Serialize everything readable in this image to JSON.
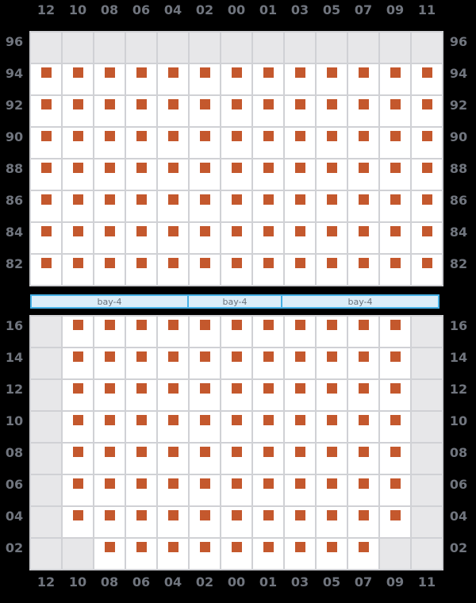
{
  "columns": [
    "12",
    "10",
    "08",
    "06",
    "04",
    "02",
    "00",
    "01",
    "03",
    "05",
    "07",
    "09",
    "11"
  ],
  "top_section": {
    "tiers": [
      {
        "tier": "96",
        "cells": [
          0,
          0,
          0,
          0,
          0,
          0,
          0,
          0,
          0,
          0,
          0,
          0,
          0
        ]
      },
      {
        "tier": "94",
        "cells": [
          1,
          1,
          1,
          1,
          1,
          1,
          1,
          1,
          1,
          1,
          1,
          1,
          1
        ]
      },
      {
        "tier": "92",
        "cells": [
          1,
          1,
          1,
          1,
          1,
          1,
          1,
          1,
          1,
          1,
          1,
          1,
          1
        ]
      },
      {
        "tier": "90",
        "cells": [
          1,
          1,
          1,
          1,
          1,
          1,
          1,
          1,
          1,
          1,
          1,
          1,
          1
        ]
      },
      {
        "tier": "88",
        "cells": [
          1,
          1,
          1,
          1,
          1,
          1,
          1,
          1,
          1,
          1,
          1,
          1,
          1
        ]
      },
      {
        "tier": "86",
        "cells": [
          1,
          1,
          1,
          1,
          1,
          1,
          1,
          1,
          1,
          1,
          1,
          1,
          1
        ]
      },
      {
        "tier": "84",
        "cells": [
          1,
          1,
          1,
          1,
          1,
          1,
          1,
          1,
          1,
          1,
          1,
          1,
          1
        ]
      },
      {
        "tier": "82",
        "cells": [
          1,
          1,
          1,
          1,
          1,
          1,
          1,
          1,
          1,
          1,
          1,
          1,
          1
        ]
      }
    ]
  },
  "bottom_section": {
    "tiers": [
      {
        "tier": "16",
        "cells": [
          0,
          1,
          1,
          1,
          1,
          1,
          1,
          1,
          1,
          1,
          1,
          1,
          0
        ]
      },
      {
        "tier": "14",
        "cells": [
          0,
          1,
          1,
          1,
          1,
          1,
          1,
          1,
          1,
          1,
          1,
          1,
          0
        ]
      },
      {
        "tier": "12",
        "cells": [
          0,
          1,
          1,
          1,
          1,
          1,
          1,
          1,
          1,
          1,
          1,
          1,
          0
        ]
      },
      {
        "tier": "10",
        "cells": [
          0,
          1,
          1,
          1,
          1,
          1,
          1,
          1,
          1,
          1,
          1,
          1,
          0
        ]
      },
      {
        "tier": "08",
        "cells": [
          0,
          1,
          1,
          1,
          1,
          1,
          1,
          1,
          1,
          1,
          1,
          1,
          0
        ]
      },
      {
        "tier": "06",
        "cells": [
          0,
          1,
          1,
          1,
          1,
          1,
          1,
          1,
          1,
          1,
          1,
          1,
          0
        ]
      },
      {
        "tier": "04",
        "cells": [
          0,
          1,
          1,
          1,
          1,
          1,
          1,
          1,
          1,
          1,
          1,
          1,
          0
        ]
      },
      {
        "tier": "02",
        "cells": [
          0,
          0,
          1,
          1,
          1,
          1,
          1,
          1,
          1,
          1,
          1,
          0,
          0
        ]
      }
    ]
  },
  "bay_bar": {
    "segments": [
      {
        "label": "bay-4",
        "span_columns": 5
      },
      {
        "label": "bay-4",
        "span_columns": 3
      },
      {
        "label": "bay-4",
        "span_columns": 5
      }
    ]
  },
  "colors": {
    "background": "#000000",
    "occupied_square": "#C4582D",
    "cell_fill": "#FFFFFF",
    "empty_cell": "#E7E7E9",
    "grid_line": "#D0D1D5",
    "label_text": "#70757E",
    "bay_fill": "#DBEDF8",
    "bay_border": "#45B0E5",
    "bay_text": "#6A727C"
  }
}
